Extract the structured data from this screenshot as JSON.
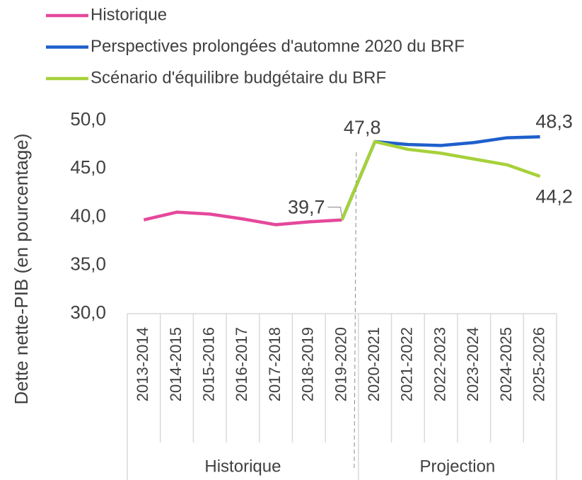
{
  "chart_data": {
    "type": "line",
    "y_label": "Dette nette-PIB (en pourcentage)",
    "categories": [
      "2013-2014",
      "2014-2015",
      "2015-2016",
      "2016-2017",
      "2017-2018",
      "2018-2019",
      "2019-2020",
      "2020-2021",
      "2021-2022",
      "2022-2023",
      "2023-2024",
      "2024-2025",
      "2025-2026"
    ],
    "groups": [
      {
        "label": "Historique",
        "size": 7
      },
      {
        "label": "Projection",
        "size": 6
      }
    ],
    "series": [
      {
        "name": "Historique",
        "color": "#e5489b",
        "values": [
          39.7,
          40.5,
          40.3,
          39.8,
          39.2,
          39.5,
          39.7,
          null,
          null,
          null,
          null,
          null,
          null
        ],
        "value_labels": [
          null,
          null,
          null,
          null,
          null,
          null,
          "39,7",
          null,
          null,
          null,
          null,
          null,
          null
        ]
      },
      {
        "name": "Perspectives prolongées d'automne 2020 du BRF",
        "color": "#1f5fcc",
        "values": [
          null,
          null,
          null,
          null,
          null,
          null,
          39.7,
          47.8,
          47.5,
          47.4,
          47.7,
          48.2,
          48.3
        ],
        "value_labels": [
          null,
          null,
          null,
          null,
          null,
          null,
          null,
          null,
          null,
          null,
          null,
          null,
          "48,3"
        ]
      },
      {
        "name": "Scénario d'équilibre budgétaire du BRF",
        "color": "#a6d13a",
        "values": [
          null,
          null,
          null,
          null,
          null,
          null,
          39.7,
          47.8,
          47.0,
          46.6,
          46.0,
          45.4,
          44.2
        ],
        "value_labels": [
          null,
          null,
          null,
          null,
          null,
          null,
          null,
          "47,8",
          null,
          null,
          null,
          null,
          "44,2"
        ]
      }
    ],
    "ylim": [
      30,
      50
    ],
    "yticks": [
      {
        "value": 30,
        "label": "30,0"
      },
      {
        "value": 35,
        "label": "35,0"
      },
      {
        "value": 40,
        "label": "40,0"
      },
      {
        "value": 45,
        "label": "45,0"
      },
      {
        "value": 50,
        "label": "50,0"
      }
    ],
    "grid": false
  }
}
